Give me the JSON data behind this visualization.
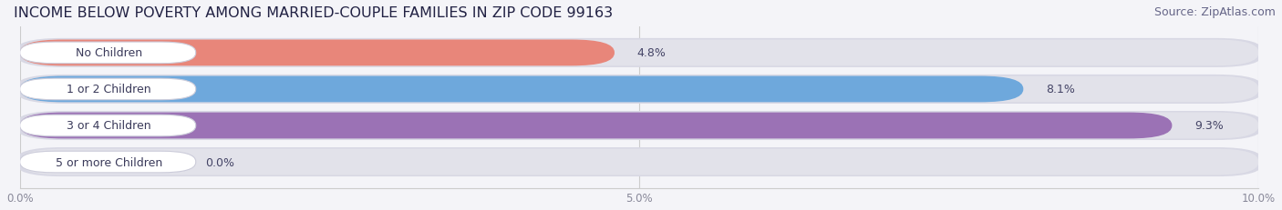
{
  "title": "INCOME BELOW POVERTY AMONG MARRIED-COUPLE FAMILIES IN ZIP CODE 99163",
  "source": "Source: ZipAtlas.com",
  "categories": [
    "No Children",
    "1 or 2 Children",
    "3 or 4 Children",
    "5 or more Children"
  ],
  "values": [
    4.8,
    8.1,
    9.3,
    0.0
  ],
  "value_labels": [
    "4.8%",
    "8.1%",
    "9.3%",
    "0.0%"
  ],
  "bar_colors": [
    "#e8867a",
    "#6ea8dc",
    "#9b72b5",
    "#6dc8c8"
  ],
  "xlim": [
    0,
    10.0
  ],
  "xticks": [
    0.0,
    5.0,
    10.0
  ],
  "xticklabels": [
    "0.0%",
    "5.0%",
    "10.0%"
  ],
  "bg_color": "#f4f4f8",
  "bar_bg_color": "#e2e2ea",
  "bar_outer_color": "#d8d8e4",
  "title_fontsize": 11.5,
  "source_fontsize": 9,
  "label_fontsize": 9,
  "value_fontsize": 9,
  "bar_height": 0.72,
  "figsize": [
    14.06,
    2.32
  ],
  "dpi": 100
}
